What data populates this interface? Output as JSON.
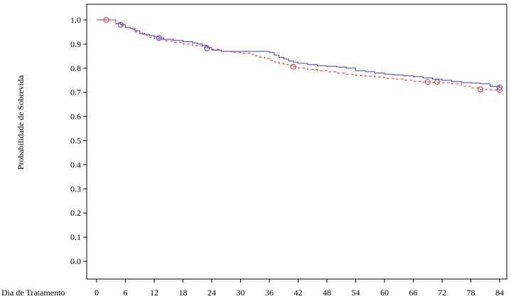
{
  "chart_data": {
    "type": "line",
    "xlabel": "Dia de Tratamento",
    "ylabel": "Probabilidade de Sobrevida",
    "xlim": [
      0,
      84
    ],
    "ylim": [
      0,
      1.0
    ],
    "xticks": [
      0,
      6,
      12,
      18,
      24,
      30,
      36,
      42,
      48,
      54,
      60,
      66,
      72,
      78,
      84
    ],
    "yticks": [
      "0.0",
      "0.1",
      "0.2",
      "0.3",
      "0.4",
      "0.5",
      "0.6",
      "0.7",
      "0.8",
      "0.9",
      "1.0"
    ],
    "grid": false,
    "series": [
      {
        "color": "#3b3bcc",
        "style": "solid",
        "x": [
          0,
          2,
          4,
          5,
          6,
          7,
          8,
          9,
          10,
          11,
          12,
          13,
          14,
          16,
          18,
          20,
          21,
          22,
          23,
          24,
          26,
          28,
          30,
          32,
          34,
          36,
          37,
          38,
          39,
          40,
          41,
          42,
          44,
          46,
          48,
          50,
          52,
          54,
          56,
          58,
          60,
          62,
          64,
          66,
          68,
          70,
          72,
          74,
          76,
          78,
          80,
          82,
          84
        ],
        "y": [
          1.0,
          1.0,
          0.985,
          0.98,
          0.97,
          0.965,
          0.955,
          0.945,
          0.94,
          0.935,
          0.93,
          0.925,
          0.92,
          0.915,
          0.91,
          0.905,
          0.9,
          0.895,
          0.885,
          0.875,
          0.87,
          0.87,
          0.87,
          0.87,
          0.87,
          0.865,
          0.855,
          0.845,
          0.838,
          0.83,
          0.825,
          0.82,
          0.815,
          0.81,
          0.808,
          0.805,
          0.8,
          0.79,
          0.785,
          0.78,
          0.775,
          0.772,
          0.768,
          0.765,
          0.76,
          0.755,
          0.75,
          0.745,
          0.74,
          0.738,
          0.735,
          0.725,
          0.72
        ],
        "censored": [
          [
            5,
            0.98
          ],
          [
            13,
            0.925
          ],
          [
            23,
            0.882
          ],
          [
            84,
            0.72
          ]
        ]
      },
      {
        "color": "#e03030",
        "style": "dashed",
        "x": [
          0,
          2,
          4,
          5,
          6,
          7,
          8,
          9,
          10,
          11,
          12,
          13,
          14,
          16,
          18,
          20,
          22,
          24,
          26,
          28,
          30,
          32,
          33,
          34,
          35,
          36,
          37,
          38,
          39,
          40,
          41,
          42,
          44,
          46,
          48,
          50,
          52,
          54,
          56,
          58,
          60,
          62,
          64,
          66,
          68,
          70,
          72,
          74,
          76,
          78,
          80,
          82,
          84
        ],
        "y": [
          1.0,
          1.0,
          0.985,
          0.978,
          0.968,
          0.96,
          0.95,
          0.94,
          0.935,
          0.928,
          0.922,
          0.918,
          0.913,
          0.908,
          0.9,
          0.893,
          0.886,
          0.878,
          0.87,
          0.865,
          0.862,
          0.858,
          0.852,
          0.846,
          0.84,
          0.832,
          0.826,
          0.82,
          0.815,
          0.81,
          0.806,
          0.8,
          0.795,
          0.79,
          0.785,
          0.78,
          0.775,
          0.77,
          0.767,
          0.763,
          0.758,
          0.755,
          0.75,
          0.746,
          0.743,
          0.742,
          0.74,
          0.735,
          0.725,
          0.718,
          0.712,
          0.71,
          0.71
        ],
        "censored": [
          [
            2,
            1.0
          ],
          [
            41,
            0.806
          ],
          [
            69,
            0.743
          ],
          [
            71,
            0.743
          ],
          [
            80,
            0.712
          ],
          [
            84,
            0.71
          ]
        ]
      }
    ]
  }
}
